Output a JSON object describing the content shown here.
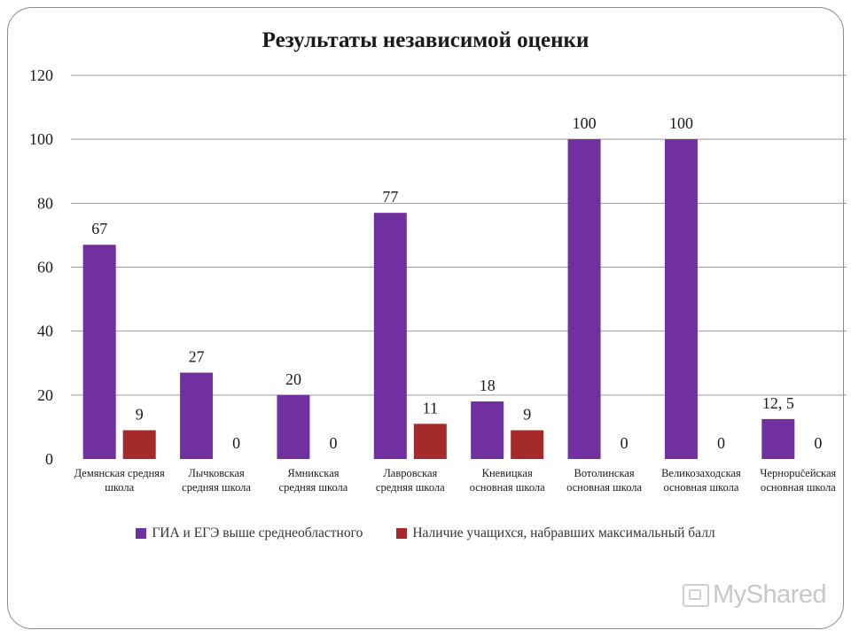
{
  "title": "Результаты независимой оценки",
  "watermark": "MyShared",
  "colors": {
    "series1": "#7030a0",
    "series2": "#a52a2a",
    "grid": "#9a9a9a",
    "text": "#1a1a1a"
  },
  "chart_data": {
    "type": "bar",
    "title": "Результаты независимой оценки",
    "xlabel": "",
    "ylabel": "",
    "ylim": [
      0,
      120
    ],
    "yticks": [
      0,
      20,
      40,
      60,
      80,
      100,
      120
    ],
    "grid": true,
    "legend_position": "bottom",
    "categories": [
      [
        "Демянская средняя",
        "школа"
      ],
      [
        "Лычковская",
        "средняя школа"
      ],
      [
        "Ямникская",
        "средняя школа"
      ],
      [
        "Лавровская",
        "средняя школа"
      ],
      [
        "Кневицкая",
        "основная школа"
      ],
      [
        "Вотолинская",
        "основная школа"
      ],
      [
        "Великозаходская",
        "основная школа"
      ],
      [
        "Чернорučейская",
        "основная школа"
      ]
    ],
    "series": [
      {
        "name": "ГИА и ЕГЭ выше среднеобластного",
        "color": "#7030a0",
        "values": [
          67,
          27,
          20,
          77,
          18,
          100,
          100,
          12.5
        ],
        "labels": [
          "67",
          "27",
          "20",
          "77",
          "18",
          "100",
          "100",
          "12, 5"
        ]
      },
      {
        "name": "Наличие учащихся, набравших максимальный балл",
        "color": "#a52a2a",
        "values": [
          9,
          0,
          0,
          11,
          9,
          0,
          0,
          0
        ],
        "labels": [
          "9",
          "0",
          "0",
          "11",
          "9",
          "0",
          "0",
          "0"
        ]
      }
    ]
  }
}
